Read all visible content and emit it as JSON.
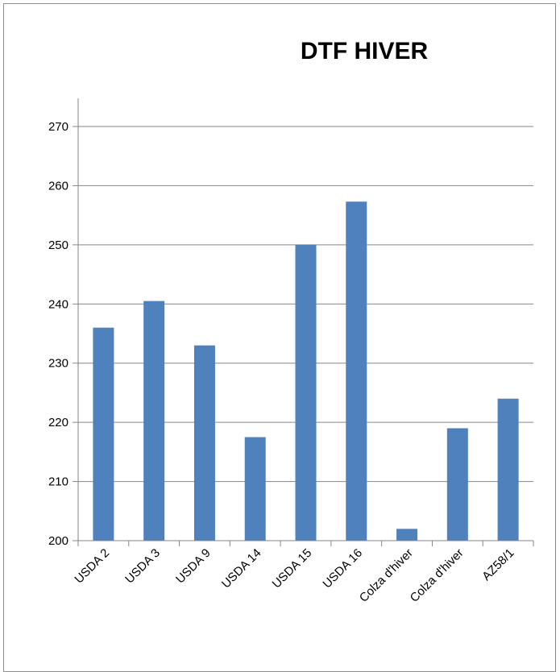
{
  "chart_data": {
    "type": "bar",
    "title": "DTF HIVER",
    "categories": [
      "USDA 2",
      "USDA 3",
      "USDA 9",
      "USDA 14",
      "USDA 15",
      "USDA 16",
      "Colza d'hiver",
      "Colza d'hiver",
      "AZ58/1"
    ],
    "values": [
      236,
      240.5,
      233,
      217.5,
      250,
      257.3,
      202,
      219,
      224
    ],
    "ylim": [
      200,
      270
    ],
    "yticks": [
      200,
      210,
      220,
      230,
      240,
      250,
      260,
      270
    ],
    "grid": true,
    "legend": "none",
    "colors": {
      "bar": "#4f81bd",
      "grid": "#868686",
      "axis": "#868686"
    }
  }
}
